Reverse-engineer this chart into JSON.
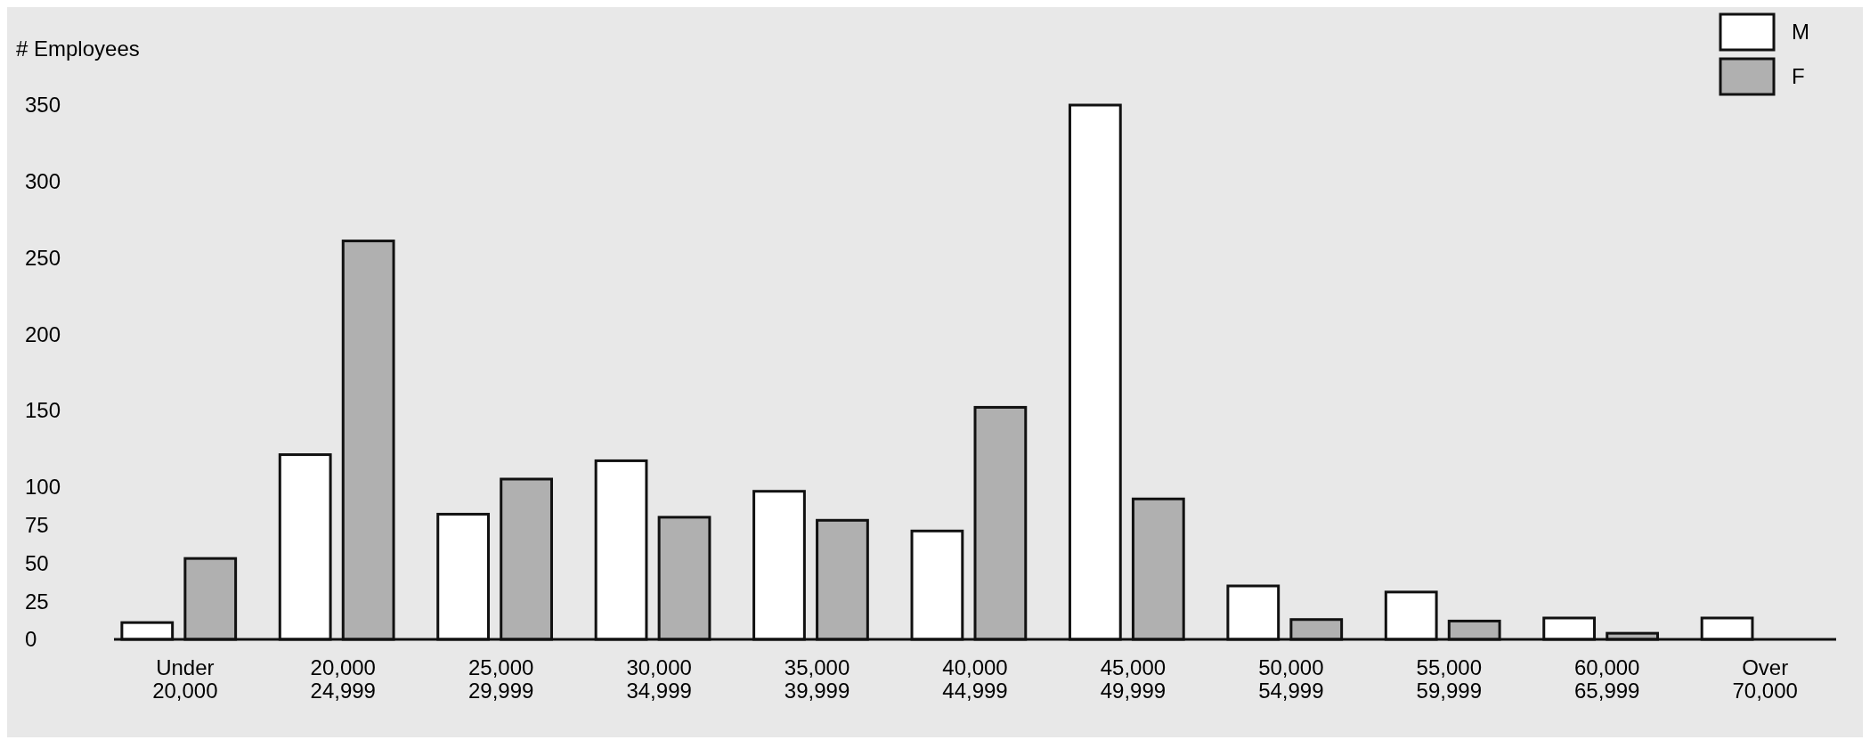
{
  "chart_data": {
    "type": "bar",
    "ylabel": "# Employees",
    "categories": [
      "Under\n20,000",
      "20,000\n24,999",
      "25,000\n29,999",
      "30,000\n34,999",
      "35,000\n39,999",
      "40,000\n44,999",
      "45,000\n49,999",
      "50,000\n54,999",
      "55,000\n59,999",
      "60,000\n65,999",
      "Over\n70,000"
    ],
    "series": [
      {
        "name": "M",
        "color": "#ffffff",
        "values": [
          11,
          121,
          82,
          117,
          97,
          71,
          350,
          35,
          31,
          14,
          14
        ]
      },
      {
        "name": "F",
        "color": "#b0b0b0",
        "values": [
          53,
          261,
          105,
          80,
          78,
          152,
          92,
          13,
          12,
          4,
          null
        ]
      }
    ],
    "ylim": [
      0,
      350
    ],
    "yticks": [
      0,
      25,
      50,
      75,
      100,
      150,
      200,
      250,
      300,
      350
    ],
    "legend": "top right"
  }
}
